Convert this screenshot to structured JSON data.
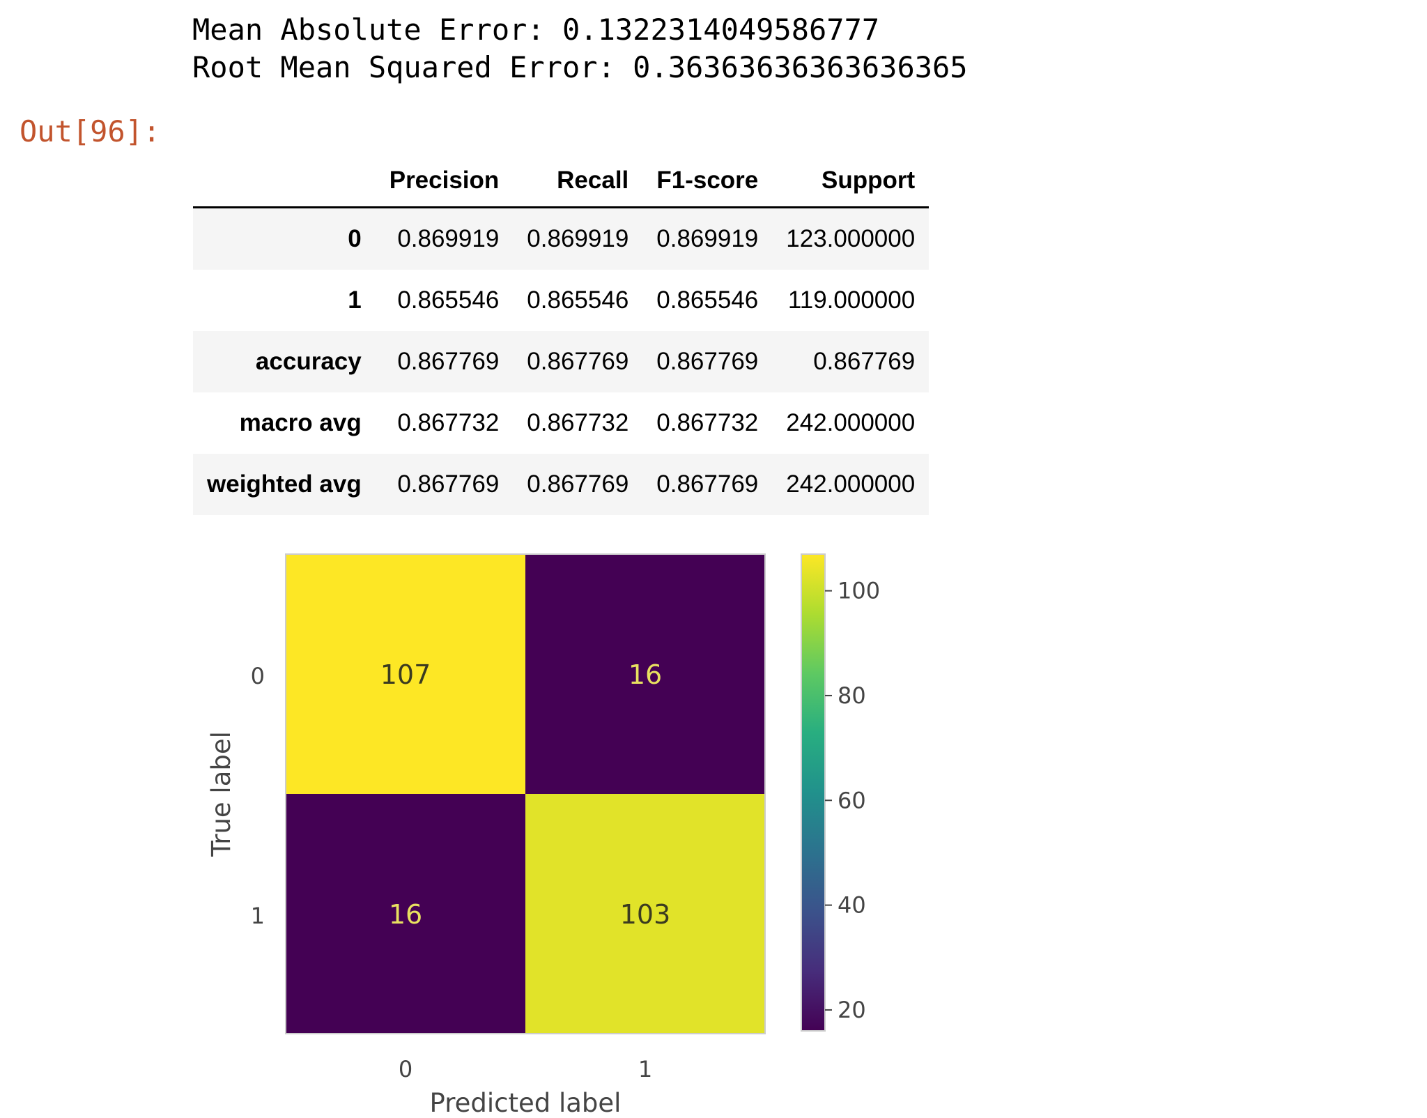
{
  "stdout": {
    "mae_line": "Mean Absolute Error: 0.1322314049586777",
    "rmse_line": "Root Mean Squared Error: 0.36363636363636365"
  },
  "out_prompt": "Out[96]:",
  "report_table": {
    "columns": [
      "Precision",
      "Recall",
      "F1-score",
      "Support"
    ],
    "rows": [
      {
        "label": "0",
        "values": [
          "0.869919",
          "0.869919",
          "0.869919",
          "123.000000"
        ]
      },
      {
        "label": "1",
        "values": [
          "0.865546",
          "0.865546",
          "0.865546",
          "119.000000"
        ]
      },
      {
        "label": "accuracy",
        "values": [
          "0.867769",
          "0.867769",
          "0.867769",
          "0.867769"
        ]
      },
      {
        "label": "macro avg",
        "values": [
          "0.867732",
          "0.867732",
          "0.867732",
          "242.000000"
        ]
      },
      {
        "label": "weighted avg",
        "values": [
          "0.867769",
          "0.867769",
          "0.867769",
          "242.000000"
        ]
      }
    ]
  },
  "chart_data": {
    "type": "heatmap",
    "x_categories": [
      "0",
      "1"
    ],
    "y_categories": [
      "0",
      "1"
    ],
    "values": [
      [
        107,
        16
      ],
      [
        16,
        103
      ]
    ],
    "xlabel": "Predicted label",
    "ylabel": "True label",
    "colormap": "viridis",
    "colorbar": {
      "range": [
        16,
        107
      ],
      "ticks": [
        20,
        40,
        60,
        80,
        100
      ]
    },
    "grid": false,
    "legend": "colorbar-right"
  }
}
